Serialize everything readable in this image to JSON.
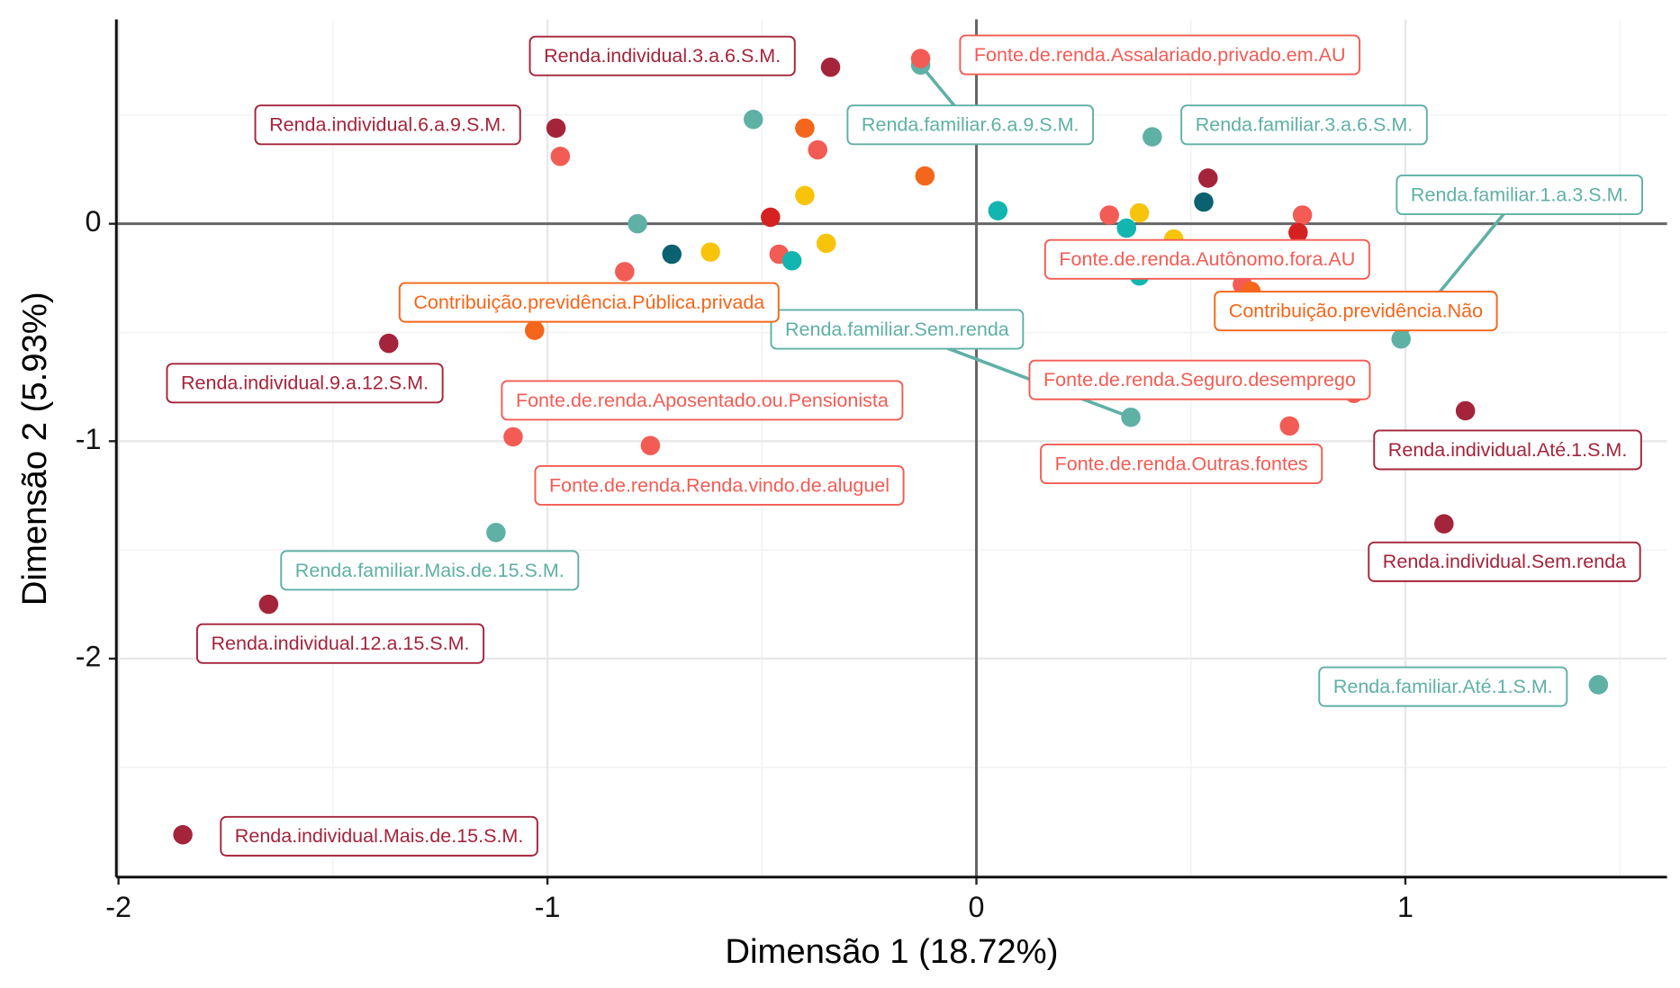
{
  "chart_data": {
    "type": "scatter",
    "xlabel": "Dimensão 1 (18.72%)",
    "ylabel": "Dimensão 2 (5.93%)",
    "xlim": [
      -2.005,
      1.61
    ],
    "ylim": [
      -3.005,
      0.94
    ],
    "xticks": [
      -2,
      -1,
      0,
      1
    ],
    "yticks": [
      -2,
      -1,
      0
    ],
    "grid": true,
    "hline": 0,
    "vline": 0,
    "series": [
      {
        "color": "#a4243b",
        "x": [
          -0.34,
          -0.98,
          -1.37,
          -1.65,
          -1.85,
          1.14,
          1.09,
          0.54
        ],
        "y": [
          0.72,
          0.44,
          -0.55,
          -1.75,
          -2.81,
          -0.86,
          -1.38,
          0.21
        ],
        "labels": [
          "Renda.individual.3.a.6.S.M.",
          "Renda.individual.6.a.9.S.M.",
          "Renda.individual.9.a.12.S.M.",
          "Renda.individual.12.a.15.S.M.",
          "Renda.individual.Mais.de.15.S.M.",
          "Renda.individual.Até.1.S.M.",
          "Renda.individual.Sem.renda",
          null
        ]
      },
      {
        "color": "#5fb0a5",
        "x": [
          -0.13,
          0.41,
          0.99,
          0.36,
          -1.12,
          1.45,
          -0.52,
          -0.79
        ],
        "y": [
          0.73,
          0.4,
          -0.53,
          -0.89,
          -1.42,
          -2.12,
          0.48,
          0.0
        ],
        "labels": [
          "Renda.familiar.6.a.9.S.M.",
          "Renda.familiar.3.a.6.S.M.",
          "Renda.familiar.1.a.3.S.M.",
          "Renda.familiar.Sem.renda",
          "Renda.familiar.Mais.de.15.S.M.",
          "Renda.familiar.Até.1.S.M.",
          null,
          null
        ]
      },
      {
        "color": "#f25c54",
        "x": [
          -0.13,
          0.76,
          0.88,
          0.73,
          -1.08,
          -0.76,
          -0.97,
          -0.37,
          -0.82,
          -0.46,
          0.31,
          0.62
        ],
        "y": [
          0.76,
          0.04,
          -0.78,
          -0.93,
          -0.98,
          -1.02,
          0.31,
          0.34,
          -0.22,
          -0.14,
          0.04,
          -0.28
        ],
        "labels": [
          "Fonte.de.renda.Assalariado.privado.em.AU",
          "Fonte.de.renda.Autônomo.fora.AU",
          "Fonte.de.renda.Seguro.desemprego",
          "Fonte.de.renda.Outras.fontes",
          "Fonte.de.renda.Aposentado.ou.Pensionista",
          "Fonte.de.renda.Renda.vindo.de.aluguel",
          null,
          null,
          null,
          null,
          null,
          null
        ]
      },
      {
        "color": "#f4661b",
        "x": [
          -1.03,
          0.64,
          -0.4,
          -0.12
        ],
        "y": [
          -0.49,
          -0.31,
          0.44,
          0.22
        ],
        "labels": [
          "Contribuição.previdência.Pública.privada",
          "Contribuição.previdência.Não",
          null,
          null
        ]
      },
      {
        "color": "#f7c40b",
        "x": [
          -0.4,
          -0.62,
          -0.35,
          0.38,
          0.46
        ],
        "y": [
          0.13,
          -0.13,
          -0.09,
          0.05,
          -0.07
        ]
      },
      {
        "color": "#0b6170",
        "x": [
          -0.71,
          0.53
        ],
        "y": [
          -0.14,
          0.1
        ]
      },
      {
        "color": "#12b5b0",
        "x": [
          0.05,
          0.35,
          -0.43,
          0.38
        ],
        "y": [
          0.06,
          -0.02,
          -0.17,
          -0.24
        ]
      },
      {
        "color": "#d62121",
        "x": [
          -0.48,
          0.75
        ],
        "y": [
          0.03,
          -0.04
        ]
      }
    ]
  }
}
